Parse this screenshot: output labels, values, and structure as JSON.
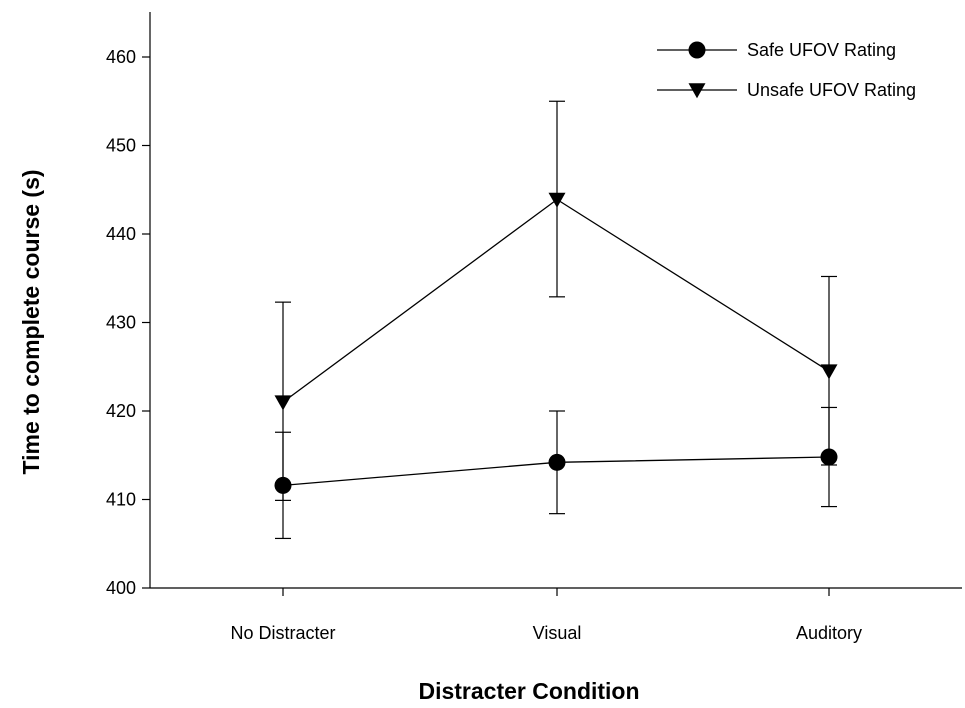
{
  "chart_data": {
    "type": "line",
    "xlabel": "Distracter Condition",
    "ylabel": "Time to complete course (s)",
    "ylim": [
      400,
      462
    ],
    "yticks": [
      400,
      410,
      420,
      430,
      440,
      450,
      460
    ],
    "categories": [
      "No Distracter",
      "Visual",
      "Auditory"
    ],
    "legend_position": "top-right",
    "grid": false,
    "series": [
      {
        "name": "Safe UFOV Rating",
        "marker": "circle",
        "color": "#000000",
        "values": [
          411.6,
          414.2,
          414.8
        ],
        "error_lower": [
          405.6,
          408.4,
          409.2
        ],
        "error_upper": [
          417.6,
          420.0,
          420.4
        ]
      },
      {
        "name": "Unsafe UFOV Rating",
        "marker": "triangle-down",
        "color": "#000000",
        "values": [
          421.0,
          443.9,
          424.5
        ],
        "error_lower": [
          409.9,
          432.9,
          413.9
        ],
        "error_upper": [
          432.3,
          455.0,
          435.2
        ]
      }
    ]
  }
}
